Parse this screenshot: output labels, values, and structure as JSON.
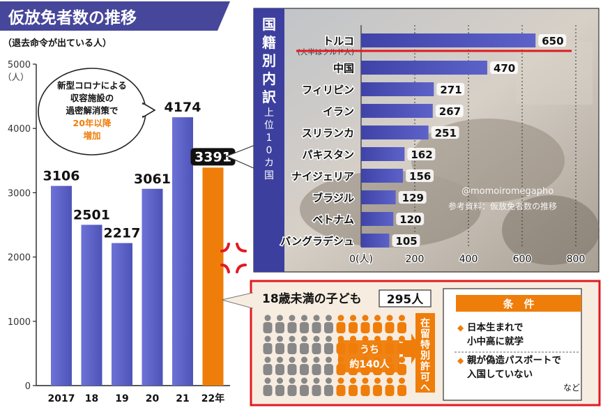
{
  "header": {
    "title": "仮放免者数の推移",
    "subtitle": "（退去命令が出ている人）"
  },
  "colors": {
    "title_bar": "#46469a",
    "bar_blue": "#5a5fc4",
    "bar_orange": "#ef7d0a",
    "panel_bg": "#f7ece0",
    "red": "#e01a22",
    "bubble_orange": "#ef7d0a",
    "figure_gray": "#888888"
  },
  "chart_data": [
    {
      "type": "bar",
      "categories": [
        "2017",
        "18",
        "19",
        "20",
        "21",
        "22年"
      ],
      "values": [
        3106,
        2501,
        2217,
        3061,
        4174,
        3391
      ],
      "highlight_index": 5,
      "ylabel": "（人）",
      "ylim": [
        0,
        5000
      ],
      "yticks": [
        "0",
        "1000",
        "2000",
        "3000",
        "4000",
        "5000"
      ],
      "grid": false,
      "annotation": [
        "新型コロナによる",
        "収容施設の",
        "過密解消策で",
        "20年以降",
        "増加"
      ]
    },
    {
      "type": "bar",
      "orientation": "horizontal",
      "title": "国籍別内訳",
      "subtitle": "上位10カ国",
      "categories": [
        "トルコ",
        "中国",
        "フィリピン",
        "イラン",
        "スリランカ",
        "パキスタン",
        "ナイジェリア",
        "ブラジル",
        "ベトナム",
        "バングラデシュ"
      ],
      "values": [
        650,
        470,
        271,
        267,
        251,
        162,
        156,
        129,
        120,
        105
      ],
      "category_note": "(大半はクルド人)",
      "xlim": [
        0,
        800
      ],
      "xticks": [
        "0(人)",
        "200",
        "400",
        "600",
        "800"
      ],
      "grid": true,
      "watermark": "@momoiromegapho",
      "source": "参考資料：仮放免者数の推移"
    }
  ],
  "children": {
    "heading": "18歳未満の子ども",
    "count": "295人",
    "group_label": [
      "うち",
      "約140人"
    ],
    "status": "在留特別許可へ",
    "conditions_title": "条　件",
    "conditions": [
      [
        "日本生まれで",
        "小中高に就学"
      ],
      [
        "親が偽造パスポートで",
        "入国していない"
      ]
    ],
    "etc": "など"
  }
}
